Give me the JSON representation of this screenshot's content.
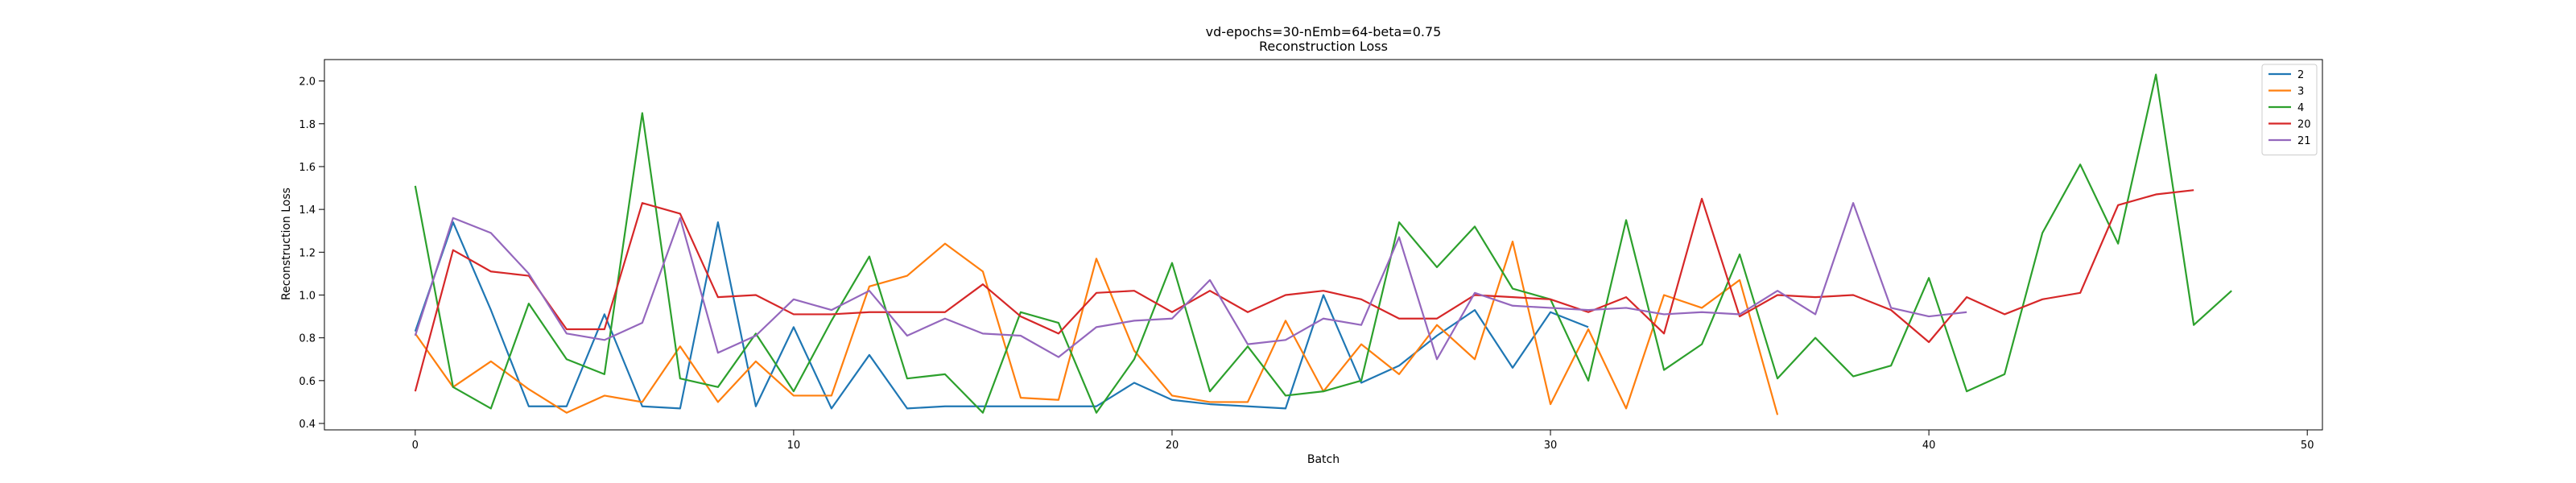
{
  "chart_data": {
    "type": "line",
    "title": "vd-epochs=30-nEmb=64-beta=0.75",
    "subtitle": "Reconstruction Loss",
    "xlabel": "Batch",
    "ylabel": "Reconstruction Loss",
    "xlim": [
      -2.4,
      50.4
    ],
    "ylim": [
      0.37,
      2.1
    ],
    "xticks": [
      0,
      10,
      20,
      30,
      40,
      50
    ],
    "yticks": [
      0.4,
      0.6,
      0.8,
      1.0,
      1.2,
      1.4,
      1.6,
      1.8,
      2.0
    ],
    "grid": false,
    "legend_position": "top-right",
    "series": [
      {
        "name": "2",
        "color": "#1f77b4",
        "values": [
          0.83,
          1.34,
          0.93,
          0.48,
          0.48,
          0.91,
          0.48,
          0.47,
          1.34,
          0.48,
          0.85,
          0.47,
          0.72,
          0.47,
          0.48,
          0.48,
          0.48,
          0.48,
          0.48,
          0.59,
          0.51,
          0.49,
          0.48,
          0.47,
          1.0,
          0.59,
          0.67,
          0.81,
          0.93,
          0.66,
          0.92,
          0.85
        ]
      },
      {
        "name": "3",
        "color": "#ff7f0e",
        "values": [
          0.82,
          0.57,
          0.69,
          0.56,
          0.45,
          0.53,
          0.5,
          0.76,
          0.5,
          0.69,
          0.53,
          0.53,
          1.04,
          1.09,
          1.24,
          1.11,
          0.52,
          0.51,
          1.17,
          0.74,
          0.53,
          0.5,
          0.5,
          0.88,
          0.55,
          0.77,
          0.63,
          0.86,
          0.7,
          1.25,
          0.49,
          0.84,
          0.47,
          1.0,
          0.94,
          1.07,
          0.44
        ]
      },
      {
        "name": "4",
        "color": "#2ca02c",
        "values": [
          1.51,
          0.57,
          0.47,
          0.96,
          0.7,
          0.63,
          1.85,
          0.61,
          0.57,
          0.82,
          0.55,
          0.88,
          1.18,
          0.61,
          0.63,
          0.45,
          0.92,
          0.87,
          0.45,
          0.7,
          1.15,
          0.55,
          0.76,
          0.53,
          0.55,
          0.6,
          1.34,
          1.13,
          1.32,
          1.03,
          0.98,
          0.6,
          1.35,
          0.65,
          0.77,
          1.19,
          0.61,
          0.8,
          0.62,
          0.67,
          1.08,
          0.55,
          0.63,
          1.29,
          1.61,
          1.24,
          2.03,
          0.86,
          1.02
        ]
      },
      {
        "name": "20",
        "color": "#d62728",
        "values": [
          0.55,
          1.21,
          1.11,
          1.09,
          0.84,
          0.84,
          1.43,
          1.38,
          0.99,
          1.0,
          0.91,
          0.91,
          0.92,
          0.92,
          0.92,
          1.05,
          0.9,
          0.82,
          1.01,
          1.02,
          0.92,
          1.02,
          0.92,
          1.0,
          1.02,
          0.98,
          0.89,
          0.89,
          1.0,
          0.99,
          0.98,
          0.92,
          0.99,
          0.82,
          1.45,
          0.9,
          1.0,
          0.99,
          1.0,
          0.93,
          0.78,
          0.99,
          0.91,
          0.98,
          1.01,
          1.42,
          1.47,
          1.49
        ]
      },
      {
        "name": "21",
        "color": "#9467bd",
        "values": [
          0.81,
          1.36,
          1.29,
          1.1,
          0.82,
          0.79,
          0.87,
          1.36,
          0.73,
          0.81,
          0.98,
          0.93,
          1.02,
          0.81,
          0.89,
          0.82,
          0.81,
          0.71,
          0.85,
          0.88,
          0.89,
          1.07,
          0.77,
          0.79,
          0.89,
          0.86,
          1.27,
          0.7,
          1.01,
          0.95,
          0.94,
          0.93,
          0.94,
          0.91,
          0.92,
          0.91,
          1.02,
          0.91,
          1.43,
          0.94,
          0.9,
          0.92
        ]
      }
    ]
  }
}
